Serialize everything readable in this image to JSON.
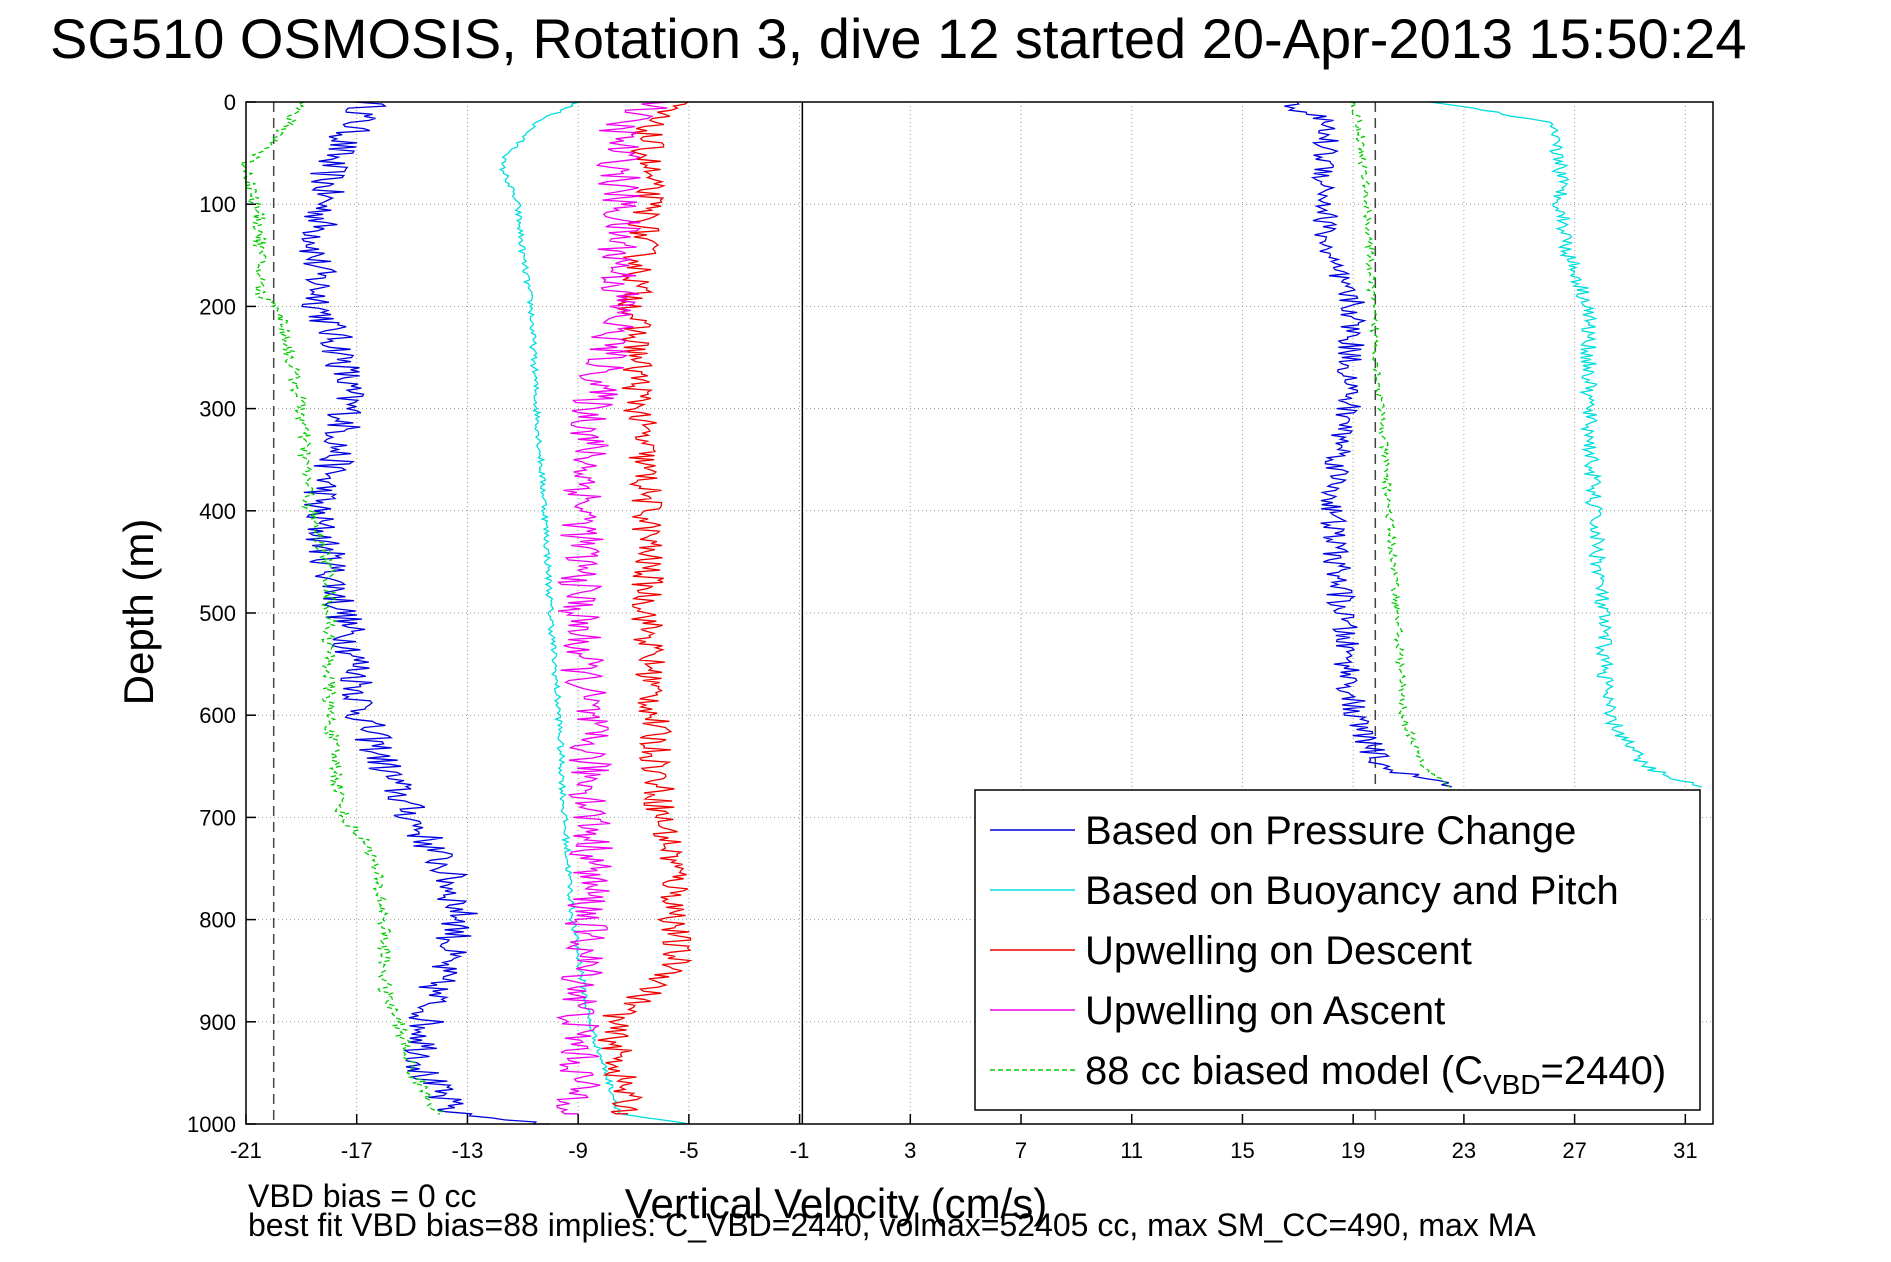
{
  "chart_data": {
    "type": "line",
    "title": "SG510 OSMOSIS, Rotation 3, dive 12 started 20-Apr-2013 15:50:24",
    "xlabel": "Vertical Velocity (cm/s)",
    "ylabel": "Depth (m)",
    "xlim": [
      -21,
      32
    ],
    "ylim": [
      0,
      1000
    ],
    "y_reversed": true,
    "grid": true,
    "grid_style": "dotted",
    "x_ticks": [
      -21,
      -17,
      -13,
      -9,
      -5,
      -1,
      3,
      7,
      11,
      15,
      19,
      23,
      27,
      31
    ],
    "y_ticks": [
      0,
      100,
      200,
      300,
      400,
      500,
      600,
      700,
      800,
      900,
      1000
    ],
    "legend_position": "lower-right",
    "reference_lines": [
      {
        "x": -20,
        "style": "dashed",
        "color": "#444444"
      },
      {
        "x": -0.9,
        "style": "solid",
        "color": "#000000"
      },
      {
        "x": 19.8,
        "style": "dashed",
        "color": "#444444"
      }
    ],
    "series": [
      {
        "name": "Based on Pressure Change",
        "color": "#0000dd",
        "style": "solid",
        "noise": 0.7,
        "y": [
          0,
          20,
          60,
          100,
          150,
          200,
          250,
          300,
          350,
          400,
          450,
          500,
          550,
          600,
          650,
          700,
          750,
          800,
          850,
          900,
          950,
          990,
          1000
        ],
        "x": [
          -16.5,
          -17,
          -18,
          -18.2,
          -18.5,
          -18.3,
          -17.5,
          -17.3,
          -17.8,
          -18.5,
          -18,
          -17.5,
          -17,
          -16.8,
          -16,
          -15,
          -13.8,
          -13.2,
          -14,
          -14.5,
          -14.6,
          -13.5,
          -10
        ]
      },
      {
        "name": "Based on Buoyancy and Pitch",
        "color": "#00dddd",
        "style": "solid",
        "noise": 0.12,
        "y": [
          0,
          20,
          60,
          100,
          150,
          200,
          300,
          400,
          500,
          600,
          700,
          800,
          900,
          990,
          1000
        ],
        "x": [
          -9,
          -10.5,
          -11.8,
          -11.2,
          -11,
          -10.7,
          -10.5,
          -10.2,
          -10,
          -9.7,
          -9.5,
          -9.2,
          -8.6,
          -7.5,
          -5
        ]
      },
      {
        "name": "Upwelling on Descent",
        "color": "#ee0000",
        "style": "solid",
        "noise": 0.6,
        "y": [
          0,
          20,
          100,
          200,
          300,
          400,
          500,
          600,
          700,
          750,
          800,
          850,
          900,
          950,
          990
        ],
        "x": [
          -5.5,
          -6.5,
          -6.5,
          -7,
          -6.8,
          -6.5,
          -6.5,
          -6.3,
          -6,
          -5.5,
          -5.5,
          -5.5,
          -7.8,
          -7.5,
          -7.2
        ]
      },
      {
        "name": "Upwelling on Ascent",
        "color": "#ee00ee",
        "style": "solid",
        "noise": 0.8,
        "y": [
          0,
          20,
          100,
          200,
          300,
          400,
          500,
          600,
          700,
          750,
          800,
          850,
          900,
          950,
          990
        ],
        "x": [
          -6,
          -7.5,
          -7.5,
          -7.5,
          -8.5,
          -8.8,
          -9,
          -8.7,
          -8.5,
          -8.5,
          -8.7,
          -8.8,
          -9,
          -9,
          -9
        ]
      },
      {
        "name": "88 cc biased model (C",
        "name_sub": "VBD",
        "name_suffix": "=2440)",
        "color": "#00cc00",
        "style": "dashed",
        "noise": 0.25,
        "y": [
          0,
          40,
          60,
          120,
          190,
          200,
          300,
          400,
          455,
          500,
          600,
          700,
          730,
          800,
          870,
          900,
          950,
          990
        ],
        "x": [
          -19,
          -20,
          -21,
          -20.5,
          -20.5,
          -19.8,
          -19,
          -18.7,
          -18,
          -18,
          -18,
          -17.5,
          -16.5,
          -16,
          -16,
          -15.5,
          -15,
          -14
        ]
      },
      {
        "name": "",
        "color": "#0000dd",
        "style": "solid",
        "noise": 0.5,
        "y": [
          0,
          20,
          60,
          100,
          150,
          200,
          300,
          400,
          500,
          600,
          650,
          670
        ],
        "x": [
          16.5,
          18,
          18,
          18,
          18,
          19,
          18.8,
          18.2,
          18.6,
          19,
          20,
          22.5
        ]
      },
      {
        "name": "",
        "color": "#00dddd",
        "style": "solid",
        "noise": 0.3,
        "y": [
          0,
          20,
          60,
          100,
          150,
          200,
          300,
          400,
          500,
          600,
          650,
          670
        ],
        "x": [
          22,
          26,
          26.5,
          26.5,
          26.8,
          27.5,
          27.5,
          27.7,
          28,
          28.2,
          29.5,
          31.5
        ]
      },
      {
        "name": "",
        "color": "#00cc00",
        "style": "dashed",
        "noise": 0.15,
        "y": [
          0,
          20,
          100,
          200,
          300,
          400,
          500,
          600,
          650,
          670
        ],
        "x": [
          19,
          19.2,
          19.5,
          19.7,
          20,
          20.3,
          20.6,
          20.8,
          21.5,
          22.5
        ]
      }
    ]
  },
  "footer": {
    "line1": "VBD bias = 0 cc",
    "line2": "best fit VBD bias=88 implies: C_VBD=2440, volmax=52405 cc, max SM_CC=490, max MA"
  }
}
